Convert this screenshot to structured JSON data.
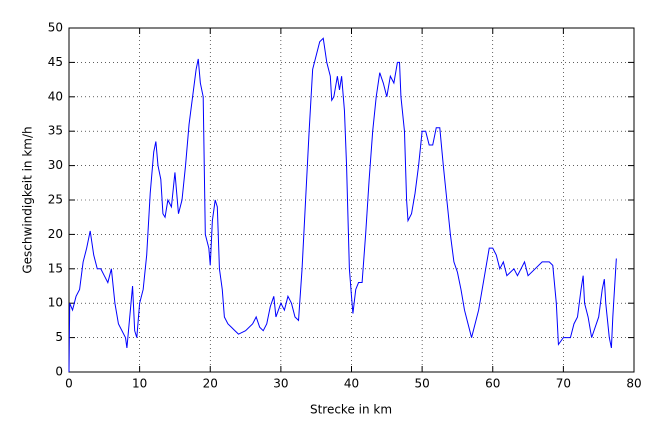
{
  "chart_data": {
    "type": "line",
    "xlabel": "Strecke in km",
    "ylabel": "Geschwindigkeit in km/h",
    "xlim": [
      0,
      80
    ],
    "ylim": [
      0,
      50
    ],
    "xticks": [
      0,
      10,
      20,
      30,
      40,
      50,
      60,
      70,
      80
    ],
    "yticks": [
      0,
      5,
      10,
      15,
      20,
      25,
      30,
      35,
      40,
      45,
      50
    ],
    "grid": true,
    "x": [
      0,
      0.1,
      0.5,
      1,
      1.5,
      2,
      2.5,
      3,
      3.5,
      4,
      4.5,
      5,
      5.5,
      6,
      6.5,
      7,
      7.5,
      8,
      8.2,
      8.6,
      9,
      9.3,
      9.6,
      10,
      10.5,
      11,
      11.5,
      12,
      12.3,
      12.6,
      13,
      13.3,
      13.6,
      14,
      14.5,
      15,
      15.5,
      16,
      16.5,
      17,
      17.5,
      18,
      18.3,
      18.6,
      19,
      19.3,
      19.8,
      20,
      20.3,
      20.7,
      21,
      21.3,
      21.7,
      22,
      22.5,
      23,
      23.5,
      24,
      25,
      26,
      26.5,
      27,
      27.5,
      28,
      28.5,
      29,
      29.3,
      30,
      30.5,
      31,
      31.5,
      32,
      32.5,
      33,
      33.5,
      34,
      34.5,
      35,
      35.5,
      36,
      36.5,
      37,
      37.2,
      37.5,
      38,
      38.3,
      38.6,
      39,
      39.3,
      39.7,
      40,
      40.2,
      40.6,
      41,
      41.5,
      42,
      42.5,
      43,
      43.5,
      44,
      44.5,
      45,
      45.5,
      46,
      46.5,
      46.8,
      47,
      47.5,
      47.8,
      48,
      48.5,
      49,
      49.5,
      50,
      50.5,
      51,
      51.5,
      52,
      52.5,
      53,
      53.5,
      54,
      54.5,
      55,
      55.5,
      56,
      56.5,
      57,
      57.5,
      58,
      58.5,
      59,
      59.5,
      60,
      60.5,
      61,
      61.5,
      62,
      63,
      63.5,
      64,
      64.5,
      65,
      66,
      67,
      68,
      68.5,
      69,
      69.3,
      70,
      71,
      71.5,
      72,
      72.5,
      72.8,
      73,
      73.5,
      74,
      75,
      75.5,
      75.8,
      76,
      76.5,
      76.8,
      77,
      77.5
    ],
    "series": [
      {
        "color": "#0000ff",
        "values": [
          0,
          10,
          9,
          11,
          12,
          16,
          18,
          20.5,
          17,
          15,
          15,
          14,
          13,
          15,
          10,
          7,
          6,
          5,
          3.5,
          8,
          12.5,
          6,
          5,
          10,
          12,
          17,
          26,
          32,
          33.5,
          30,
          28,
          23,
          22.5,
          25,
          24,
          29,
          23,
          25,
          30,
          36,
          40,
          44,
          45.5,
          42,
          40,
          20,
          18,
          15.5,
          22,
          25,
          24,
          15,
          12,
          8,
          7,
          6.5,
          6,
          5.5,
          6,
          7,
          8,
          6.5,
          6,
          7,
          9.5,
          11,
          8,
          10,
          9,
          11,
          10,
          8,
          7.5,
          15,
          25,
          35,
          44,
          46,
          48,
          48.5,
          45,
          43,
          39.5,
          40,
          43,
          41,
          43,
          38,
          30,
          15,
          11,
          8.5,
          12,
          13,
          13,
          20,
          28,
          35,
          40,
          43.5,
          42,
          40,
          43,
          42,
          45,
          45,
          40,
          35,
          25,
          22,
          23,
          26,
          30,
          35,
          35,
          33,
          33,
          35.5,
          35.5,
          30,
          25,
          20,
          16,
          14.5,
          12,
          9,
          7,
          5,
          7,
          9,
          12,
          15,
          18,
          18,
          17,
          15,
          16,
          14,
          15,
          14,
          15,
          16,
          14,
          15,
          16,
          16,
          15.5,
          10,
          4,
          5,
          5,
          7,
          8,
          12,
          14,
          10,
          8,
          5,
          8,
          12,
          13.5,
          10,
          5,
          3.5,
          8,
          16.5
        ]
      }
    ]
  }
}
